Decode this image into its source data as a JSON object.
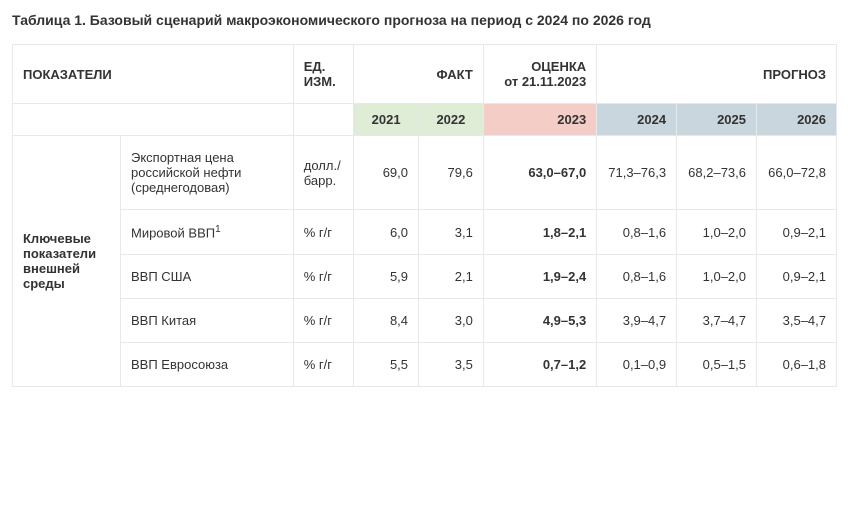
{
  "title": "Таблица 1. Базовый сценарий макроэкономического прогноза на период с 2024 по 2026 год",
  "headers": {
    "indicators": "ПОКАЗАТЕЛИ",
    "unit": "ЕД. ИЗМ.",
    "fact": "ФАКТ",
    "estimate_line1": "ОЦЕНКА",
    "estimate_line2": "от 21.11.2023",
    "forecast": "ПРОГНОЗ"
  },
  "years": {
    "y2021": "2021",
    "y2022": "2022",
    "y2023": "2023",
    "y2024": "2024",
    "y2025": "2025",
    "y2026": "2026"
  },
  "colors": {
    "fact_bg": "#dfedd6",
    "estimate_bg": "#f5cdc7",
    "forecast_bg": "#c9d6dd",
    "border": "#e8e8e8",
    "text": "#333333"
  },
  "category": "Ключевые показатели внешней среды",
  "rows": [
    {
      "indicator": "Экспортная цена российской нефти (среднегодовая)",
      "unit": "долл./барр.",
      "y2021": "69,0",
      "y2022": "79,6",
      "est": "63,0–67,0",
      "f2024": "71,3–76,3",
      "f2025": "68,2–73,6",
      "f2026": "66,0–72,8"
    },
    {
      "indicator": "Мировой ВВП",
      "footnote": "1",
      "unit": "% г/г",
      "y2021": "6,0",
      "y2022": "3,1",
      "est": "1,8–2,1",
      "f2024": "0,8–1,6",
      "f2025": "1,0–2,0",
      "f2026": "0,9–2,1"
    },
    {
      "indicator": "ВВП США",
      "unit": "% г/г",
      "y2021": "5,9",
      "y2022": "2,1",
      "est": "1,9–2,4",
      "f2024": "0,8–1,6",
      "f2025": "1,0–2,0",
      "f2026": "0,9–2,1"
    },
    {
      "indicator": "ВВП Китая",
      "unit": "% г/г",
      "y2021": "8,4",
      "y2022": "3,0",
      "est": "4,9–5,3",
      "f2024": "3,9–4,7",
      "f2025": "3,7–4,7",
      "f2026": "3,5–4,7"
    },
    {
      "indicator": "ВВП Евросоюза",
      "unit": "% г/г",
      "y2021": "5,5",
      "y2022": "3,5",
      "est": "0,7–1,2",
      "f2024": "0,1–0,9",
      "f2025": "0,5–1,5",
      "f2026": "0,6–1,8"
    }
  ]
}
